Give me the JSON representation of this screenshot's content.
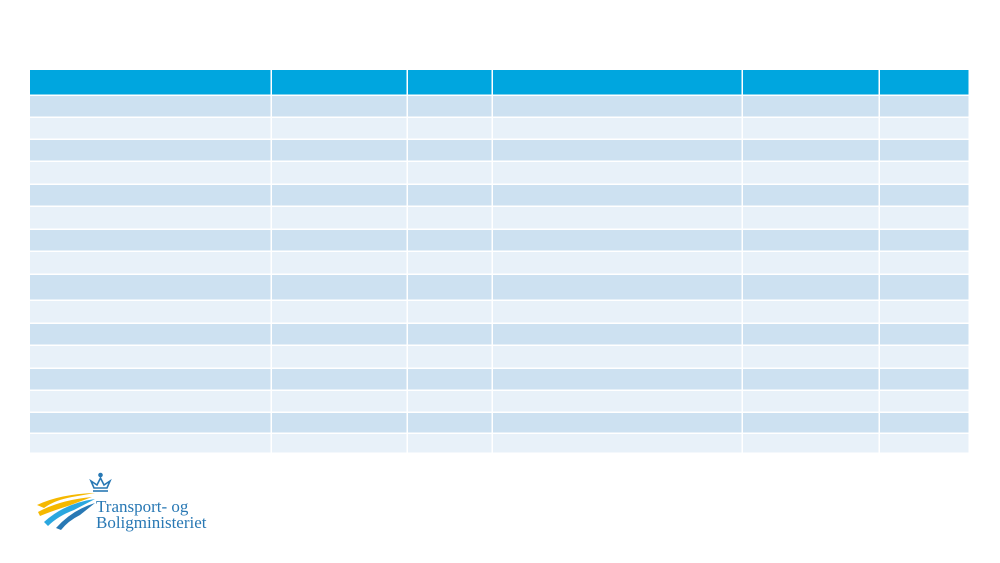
{
  "logo": {
    "lines": [
      "Transport- og",
      "Boligministeriet"
    ]
  }
}
